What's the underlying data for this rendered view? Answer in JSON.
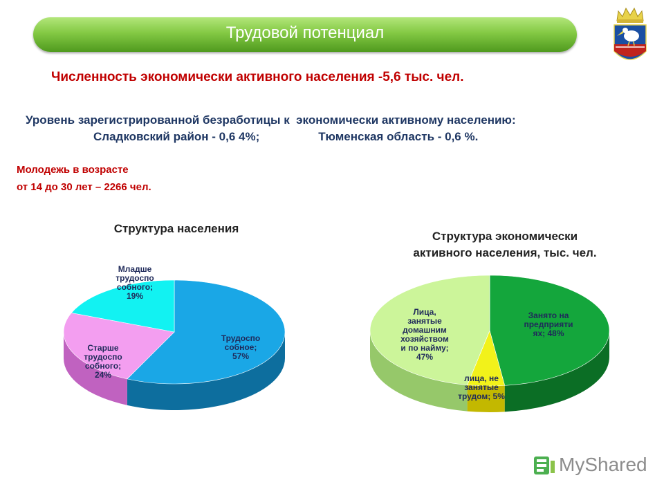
{
  "banner": {
    "title": "Трудовой потенциал"
  },
  "headline": "Численность экономически активного населения -5,6 тыс. чел.",
  "unemployment": {
    "line1": "Уровень зарегистрированной безработицы к  экономически активному населению:",
    "line2": "Сладковский район - 0,6 4%;                  Тюменская область - 0,6 %."
  },
  "youth": {
    "line1": "Молодежь в возрасте",
    "line2": "от 14 до 30 лет – 2266 чел."
  },
  "logo": {
    "text": "MyShared",
    "icon": "myshared-logo-icon"
  },
  "emblem": {
    "icon": "coat-of-arms-pelican-icon",
    "colors": [
      "#1a4fa3",
      "#e8d24a",
      "#c0241c",
      "#ffffff"
    ]
  },
  "chart_data": [
    {
      "type": "pie",
      "title": "Структура населения",
      "slices": [
        {
          "name": "Трудоспо собное",
          "label_lines": [
            "Трудоспо",
            "собное;",
            "57%"
          ],
          "value": 57,
          "color": "#1aa7e6",
          "side": "#0d6e9e"
        },
        {
          "name": "Старше трудоспо собного",
          "label_lines": [
            "Старше",
            "трудоспо",
            "собного;",
            "24%"
          ],
          "value": 24,
          "color": "#f39ef0",
          "side": "#c062c0"
        },
        {
          "name": "Младше трудоспо собного",
          "label_lines": [
            "Младше",
            "трудоспо",
            "собного;",
            "19%"
          ],
          "value": 19,
          "color": "#12f2f2",
          "side": "#0aa8a8"
        }
      ]
    },
    {
      "type": "pie",
      "title": "Структура экономически активного населения, тыс. чел.",
      "title_lines": [
        "Структура экономически",
        "активного населения, тыс. чел."
      ],
      "slices": [
        {
          "name": "Занято на предприятиях",
          "label_lines": [
            "Занято на",
            "предприяти",
            "ях; 48%"
          ],
          "value": 48,
          "color": "#14a63c",
          "side": "#0b6e25"
        },
        {
          "name": "лица, не занятые трудом",
          "label_lines": [
            "лица, не",
            "занятые",
            "трудом; 5%"
          ],
          "value": 5,
          "color": "#f2f21a",
          "side": "#c3b800"
        },
        {
          "name": "Лица, занятые домашним хозяйством и по найму",
          "label_lines": [
            "Лица,",
            "занятые",
            "домашним",
            "хозяйством",
            "и по найму;",
            "47%"
          ],
          "value": 47,
          "color": "#ccf59a",
          "side": "#96c86a"
        }
      ]
    }
  ]
}
